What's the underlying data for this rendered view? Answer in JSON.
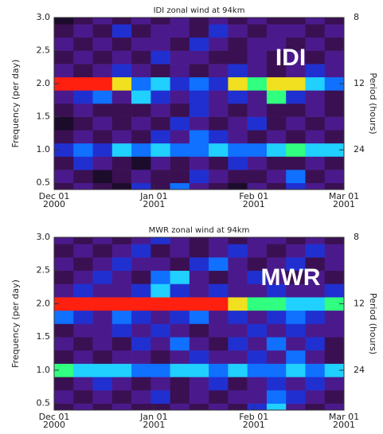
{
  "chart_data": [
    {
      "type": "heatmap",
      "title": "IDI zonal wind at 94km",
      "annotation": "IDI",
      "ylabel": "Frequency (per day)",
      "y2label": "Period (hours)",
      "xlim": [
        0,
        90
      ],
      "xticks": [
        {
          "value": 0,
          "label": "Dec 01",
          "year": "2000"
        },
        {
          "value": 31,
          "label": "Jan 01",
          "year": "2001"
        },
        {
          "value": 62,
          "label": "Feb 01",
          "year": "2001"
        },
        {
          "value": 90,
          "label": "Mar 01",
          "year": "2001"
        }
      ],
      "ylim": [
        0.4,
        3.0
      ],
      "yticks": [
        0.5,
        {
          "value": 1.0,
          "label": "1.0"
        },
        1.5,
        {
          "value": 2.0,
          "label": "2.0"
        },
        2.5,
        {
          "value": 3.0,
          "label": "3.0"
        }
      ],
      "y2ticks": [
        8,
        12,
        24
      ],
      "xbins": [
        0,
        6,
        12,
        18,
        24,
        30,
        36,
        42,
        48,
        54,
        60,
        66,
        72,
        78,
        84,
        90
      ],
      "ybins": [
        0.4,
        0.5,
        0.7,
        0.9,
        1.1,
        1.3,
        1.5,
        1.7,
        1.9,
        2.1,
        2.3,
        2.5,
        2.7,
        2.9,
        3.0
      ],
      "colors": [
        "#000000",
        "#1c0c2c",
        "#3a1052",
        "#4a1a8c",
        "#2030d0",
        "#1070ff",
        "#20d0ff",
        "#30ff80",
        "#f0e020",
        "#ff2010"
      ],
      "z": [
        [
          2,
          3,
          2,
          1,
          4,
          2,
          5,
          3,
          2,
          1,
          3,
          2,
          4,
          3,
          2
        ],
        [
          3,
          2,
          1,
          2,
          3,
          2,
          2,
          4,
          3,
          2,
          2,
          3,
          5,
          2,
          3
        ],
        [
          2,
          4,
          3,
          2,
          1,
          3,
          2,
          3,
          2,
          4,
          3,
          2,
          2,
          3,
          2
        ],
        [
          4,
          5,
          4,
          6,
          5,
          6,
          5,
          5,
          6,
          5,
          5,
          6,
          7,
          6,
          6
        ],
        [
          2,
          3,
          2,
          3,
          2,
          4,
          3,
          5,
          4,
          3,
          2,
          3,
          2,
          3,
          2
        ],
        [
          1,
          2,
          3,
          2,
          3,
          2,
          4,
          3,
          2,
          3,
          4,
          2,
          3,
          2,
          3
        ],
        [
          2,
          3,
          2,
          2,
          2,
          3,
          2,
          4,
          3,
          2,
          3,
          2,
          2,
          3,
          2
        ],
        [
          3,
          4,
          5,
          3,
          6,
          4,
          3,
          4,
          3,
          4,
          3,
          7,
          4,
          3,
          2
        ],
        [
          9,
          9,
          9,
          8,
          5,
          6,
          4,
          5,
          4,
          8,
          7,
          8,
          8,
          6,
          5
        ],
        [
          3,
          2,
          3,
          4,
          3,
          2,
          3,
          2,
          3,
          4,
          3,
          2,
          3,
          4,
          3
        ],
        [
          2,
          3,
          2,
          3,
          2,
          4,
          3,
          3,
          2,
          2,
          3,
          2,
          3,
          2,
          3
        ],
        [
          3,
          2,
          3,
          2,
          3,
          3,
          2,
          4,
          3,
          2,
          3,
          3,
          2,
          3,
          2
        ],
        [
          2,
          3,
          2,
          4,
          2,
          3,
          3,
          2,
          4,
          3,
          2,
          3,
          3,
          2,
          3
        ],
        [
          1,
          2,
          3,
          2,
          3,
          2,
          3,
          2,
          3,
          2,
          3,
          2,
          2,
          3,
          2
        ]
      ]
    },
    {
      "type": "heatmap",
      "title": "MWR zonal wind at 94km",
      "annotation": "MWR",
      "ylabel": "Frequency (per day)",
      "y2label": "Period (hours)",
      "xlim": [
        0,
        90
      ],
      "xticks": [
        {
          "value": 0,
          "label": "Dec 01",
          "year": "2000"
        },
        {
          "value": 31,
          "label": "Jan 01",
          "year": "2001"
        },
        {
          "value": 62,
          "label": "Feb 01",
          "year": "2001"
        },
        {
          "value": 90,
          "label": "Mar 01",
          "year": "2001"
        }
      ],
      "ylim": [
        0.4,
        3.0
      ],
      "yticks": [
        0.5,
        {
          "value": 1.0,
          "label": "1.0"
        },
        1.5,
        {
          "value": 2.0,
          "label": "2.0"
        },
        2.5,
        {
          "value": 3.0,
          "label": "3.0"
        }
      ],
      "y2ticks": [
        8,
        12,
        24
      ],
      "xbins": [
        0,
        6,
        12,
        18,
        24,
        30,
        36,
        42,
        48,
        54,
        60,
        66,
        72,
        78,
        84,
        90
      ],
      "ybins": [
        0.4,
        0.5,
        0.7,
        0.9,
        1.1,
        1.3,
        1.5,
        1.7,
        1.9,
        2.1,
        2.3,
        2.5,
        2.7,
        2.9,
        3.0
      ],
      "colors": [
        "#000000",
        "#1c0c2c",
        "#3a1052",
        "#4a1a8c",
        "#2030d0",
        "#1070ff",
        "#20d0ff",
        "#30ff80",
        "#f0e020",
        "#ff2010"
      ],
      "z": [
        [
          2,
          3,
          2,
          3,
          2,
          2,
          3,
          2,
          3,
          2,
          4,
          6,
          3,
          2,
          3
        ],
        [
          3,
          2,
          3,
          2,
          3,
          4,
          2,
          3,
          2,
          3,
          3,
          5,
          4,
          3,
          2
        ],
        [
          2,
          3,
          4,
          3,
          2,
          3,
          2,
          3,
          4,
          2,
          3,
          4,
          3,
          4,
          3
        ],
        [
          7,
          6,
          6,
          6,
          5,
          5,
          6,
          6,
          5,
          6,
          5,
          5,
          6,
          5,
          6
        ],
        [
          2,
          3,
          2,
          3,
          3,
          2,
          3,
          4,
          3,
          3,
          4,
          3,
          5,
          3,
          2
        ],
        [
          3,
          2,
          3,
          2,
          4,
          3,
          5,
          3,
          2,
          4,
          3,
          5,
          3,
          4,
          2
        ],
        [
          2,
          3,
          3,
          4,
          3,
          4,
          3,
          2,
          3,
          3,
          4,
          3,
          4,
          3,
          3
        ],
        [
          5,
          4,
          3,
          5,
          4,
          3,
          4,
          5,
          3,
          4,
          3,
          4,
          5,
          4,
          3
        ],
        [
          9,
          9,
          9,
          9,
          9,
          9,
          9,
          9,
          9,
          8,
          7,
          7,
          6,
          6,
          7
        ],
        [
          3,
          4,
          3,
          3,
          4,
          6,
          4,
          3,
          4,
          3,
          3,
          4,
          3,
          3,
          4
        ],
        [
          2,
          3,
          4,
          3,
          2,
          5,
          6,
          3,
          2,
          3,
          4,
          3,
          2,
          3,
          2
        ],
        [
          3,
          2,
          3,
          4,
          3,
          3,
          2,
          4,
          5,
          3,
          2,
          3,
          4,
          2,
          3
        ],
        [
          2,
          3,
          2,
          3,
          4,
          2,
          3,
          2,
          3,
          4,
          3,
          2,
          3,
          4,
          3
        ],
        [
          3,
          2,
          3,
          2,
          3,
          4,
          3,
          2,
          3,
          2,
          3,
          3,
          2,
          3,
          2
        ]
      ]
    }
  ]
}
